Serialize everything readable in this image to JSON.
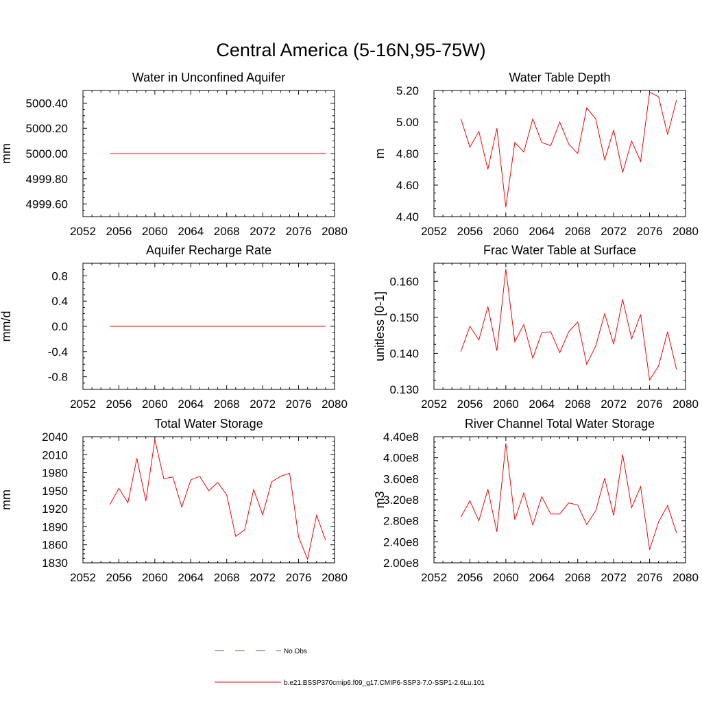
{
  "figure": {
    "title": "Central America (5-16N,95-75W)"
  },
  "legend": {
    "entries": [
      {
        "label": "No Obs",
        "color": "#5555cc",
        "style": "dashed"
      },
      {
        "label": "b.e21.BSSP370cmip6.f09_g17.CMIP6-SSP3-7.0-SSP1-2.6Lu.101",
        "color": "#ff0000",
        "style": "solid"
      }
    ]
  },
  "chart_data": [
    {
      "type": "line",
      "title": "Water in Unconfined Aquifer",
      "xlabel": "",
      "ylabel": "mm",
      "xlim": [
        2052,
        2080
      ],
      "ylim": [
        4999.5,
        5000.5
      ],
      "xticks": [
        "2052",
        "2056",
        "2060",
        "2064",
        "2068",
        "2072",
        "2076",
        "2080"
      ],
      "yticks": [
        "4999.60",
        "4999.80",
        "5000.00",
        "5000.20",
        "5000.40"
      ],
      "x": [
        2055,
        2056,
        2057,
        2058,
        2059,
        2060,
        2061,
        2062,
        2063,
        2064,
        2065,
        2066,
        2067,
        2068,
        2069,
        2070,
        2071,
        2072,
        2073,
        2074,
        2075,
        2076,
        2077,
        2078,
        2079
      ],
      "series": [
        {
          "values": [
            5000,
            5000,
            5000,
            5000,
            5000,
            5000,
            5000,
            5000,
            5000,
            5000,
            5000,
            5000,
            5000,
            5000,
            5000,
            5000,
            5000,
            5000,
            5000,
            5000,
            5000,
            5000,
            5000,
            5000,
            5000
          ],
          "color": "#ff0000"
        }
      ]
    },
    {
      "type": "line",
      "title": "Water Table Depth",
      "xlabel": "",
      "ylabel": "m",
      "xlim": [
        2052,
        2080
      ],
      "ylim": [
        4.4,
        5.2
      ],
      "xticks": [
        "2052",
        "2056",
        "2060",
        "2064",
        "2068",
        "2072",
        "2076",
        "2080"
      ],
      "yticks": [
        "4.40",
        "4.60",
        "4.80",
        "5.00",
        "5.20"
      ],
      "x": [
        2055,
        2056,
        2057,
        2058,
        2059,
        2060,
        2061,
        2062,
        2063,
        2064,
        2065,
        2066,
        2067,
        2068,
        2069,
        2070,
        2071,
        2072,
        2073,
        2074,
        2075,
        2076,
        2077,
        2078,
        2079
      ],
      "series": [
        {
          "values": [
            5.02,
            4.84,
            4.94,
            4.7,
            4.96,
            4.46,
            4.87,
            4.81,
            5.02,
            4.87,
            4.85,
            5.0,
            4.86,
            4.8,
            5.09,
            5.02,
            4.76,
            4.95,
            4.68,
            4.88,
            4.75,
            5.19,
            5.16,
            4.92,
            5.14
          ],
          "color": "#ff0000"
        }
      ]
    },
    {
      "type": "line",
      "title": "Aquifer Recharge Rate",
      "xlabel": "",
      "ylabel": "mm/d",
      "xlim": [
        2052,
        2080
      ],
      "ylim": [
        -1.0,
        1.0
      ],
      "xticks": [
        "2052",
        "2056",
        "2060",
        "2064",
        "2068",
        "2072",
        "2076",
        "2080"
      ],
      "yticks": [
        "-0.8",
        "-0.4",
        "0.0",
        "0.4",
        "0.8"
      ],
      "x": [
        2055,
        2056,
        2057,
        2058,
        2059,
        2060,
        2061,
        2062,
        2063,
        2064,
        2065,
        2066,
        2067,
        2068,
        2069,
        2070,
        2071,
        2072,
        2073,
        2074,
        2075,
        2076,
        2077,
        2078,
        2079
      ],
      "series": [
        {
          "values": [
            0,
            0,
            0,
            0,
            0,
            0,
            0,
            0,
            0,
            0,
            0,
            0,
            0,
            0,
            0,
            0,
            0,
            0,
            0,
            0,
            0,
            0,
            0,
            0,
            0
          ],
          "color": "#ff0000"
        }
      ]
    },
    {
      "type": "line",
      "title": "Frac Water Table at Surface",
      "xlabel": "",
      "ylabel": "unitless [0-1]",
      "xlim": [
        2052,
        2080
      ],
      "ylim": [
        0.13,
        0.165
      ],
      "xticks": [
        "2052",
        "2056",
        "2060",
        "2064",
        "2068",
        "2072",
        "2076",
        "2080"
      ],
      "yticks": [
        "0.130",
        "0.140",
        "0.150",
        "0.160"
      ],
      "x": [
        2055,
        2056,
        2057,
        2058,
        2059,
        2060,
        2061,
        2062,
        2063,
        2064,
        2065,
        2066,
        2067,
        2068,
        2069,
        2070,
        2071,
        2072,
        2073,
        2074,
        2075,
        2076,
        2077,
        2078,
        2079
      ],
      "series": [
        {
          "values": [
            0.1405,
            0.1475,
            0.1437,
            0.153,
            0.1407,
            0.1634,
            0.1432,
            0.148,
            0.1387,
            0.1457,
            0.146,
            0.1402,
            0.146,
            0.1487,
            0.137,
            0.142,
            0.151,
            0.1425,
            0.155,
            0.144,
            0.1508,
            0.1326,
            0.1365,
            0.146,
            0.1355
          ],
          "color": "#ff0000"
        }
      ]
    },
    {
      "type": "line",
      "title": "Total Water Storage",
      "xlabel": "",
      "ylabel": "mm",
      "xlim": [
        2052,
        2080
      ],
      "ylim": [
        1830,
        2040
      ],
      "xticks": [
        "2052",
        "2056",
        "2060",
        "2064",
        "2068",
        "2072",
        "2076",
        "2080"
      ],
      "yticks": [
        "1830",
        "1860",
        "1890",
        "1920",
        "1950",
        "1980",
        "2010",
        "2040"
      ],
      "x": [
        2055,
        2056,
        2057,
        2058,
        2059,
        2060,
        2061,
        2062,
        2063,
        2064,
        2065,
        2066,
        2067,
        2068,
        2069,
        2070,
        2071,
        2072,
        2073,
        2074,
        2075,
        2076,
        2077,
        2078,
        2079
      ],
      "series": [
        {
          "values": [
            1927,
            1954,
            1930,
            2004,
            1933,
            2035,
            1970,
            1973,
            1923,
            1968,
            1974,
            1950,
            1964,
            1943,
            1874,
            1885,
            1952,
            1910,
            1965,
            1974,
            1979,
            1873,
            1836,
            1909,
            1868
          ],
          "color": "#ff0000"
        }
      ]
    },
    {
      "type": "line",
      "title": "River Channel Total Water Storage",
      "xlabel": "",
      "ylabel": "m3",
      "xlim": [
        2052,
        2080
      ],
      "ylim": [
        200000000.0,
        440000000.0
      ],
      "xticks": [
        "2052",
        "2056",
        "2060",
        "2064",
        "2068",
        "2072",
        "2076",
        "2080"
      ],
      "yticks": [
        "2.00e8",
        "2.40e8",
        "2.80e8",
        "3.20e8",
        "3.60e8",
        "4.00e8",
        "4.40e8"
      ],
      "x": [
        2055,
        2056,
        2057,
        2058,
        2059,
        2060,
        2061,
        2062,
        2063,
        2064,
        2065,
        2066,
        2067,
        2068,
        2069,
        2070,
        2071,
        2072,
        2073,
        2074,
        2075,
        2076,
        2077,
        2078,
        2079
      ],
      "series": [
        {
          "values": [
            287000000.0,
            318000000.0,
            280000000.0,
            340000000.0,
            259000000.0,
            427000000.0,
            282000000.0,
            333000000.0,
            272000000.0,
            326000000.0,
            293000000.0,
            293000000.0,
            314000000.0,
            310000000.0,
            273000000.0,
            299000000.0,
            361000000.0,
            290000000.0,
            406000000.0,
            305000000.0,
            345000000.0,
            225000000.0,
            278000000.0,
            309000000.0,
            257000000.0
          ],
          "color": "#ff0000"
        }
      ]
    }
  ]
}
